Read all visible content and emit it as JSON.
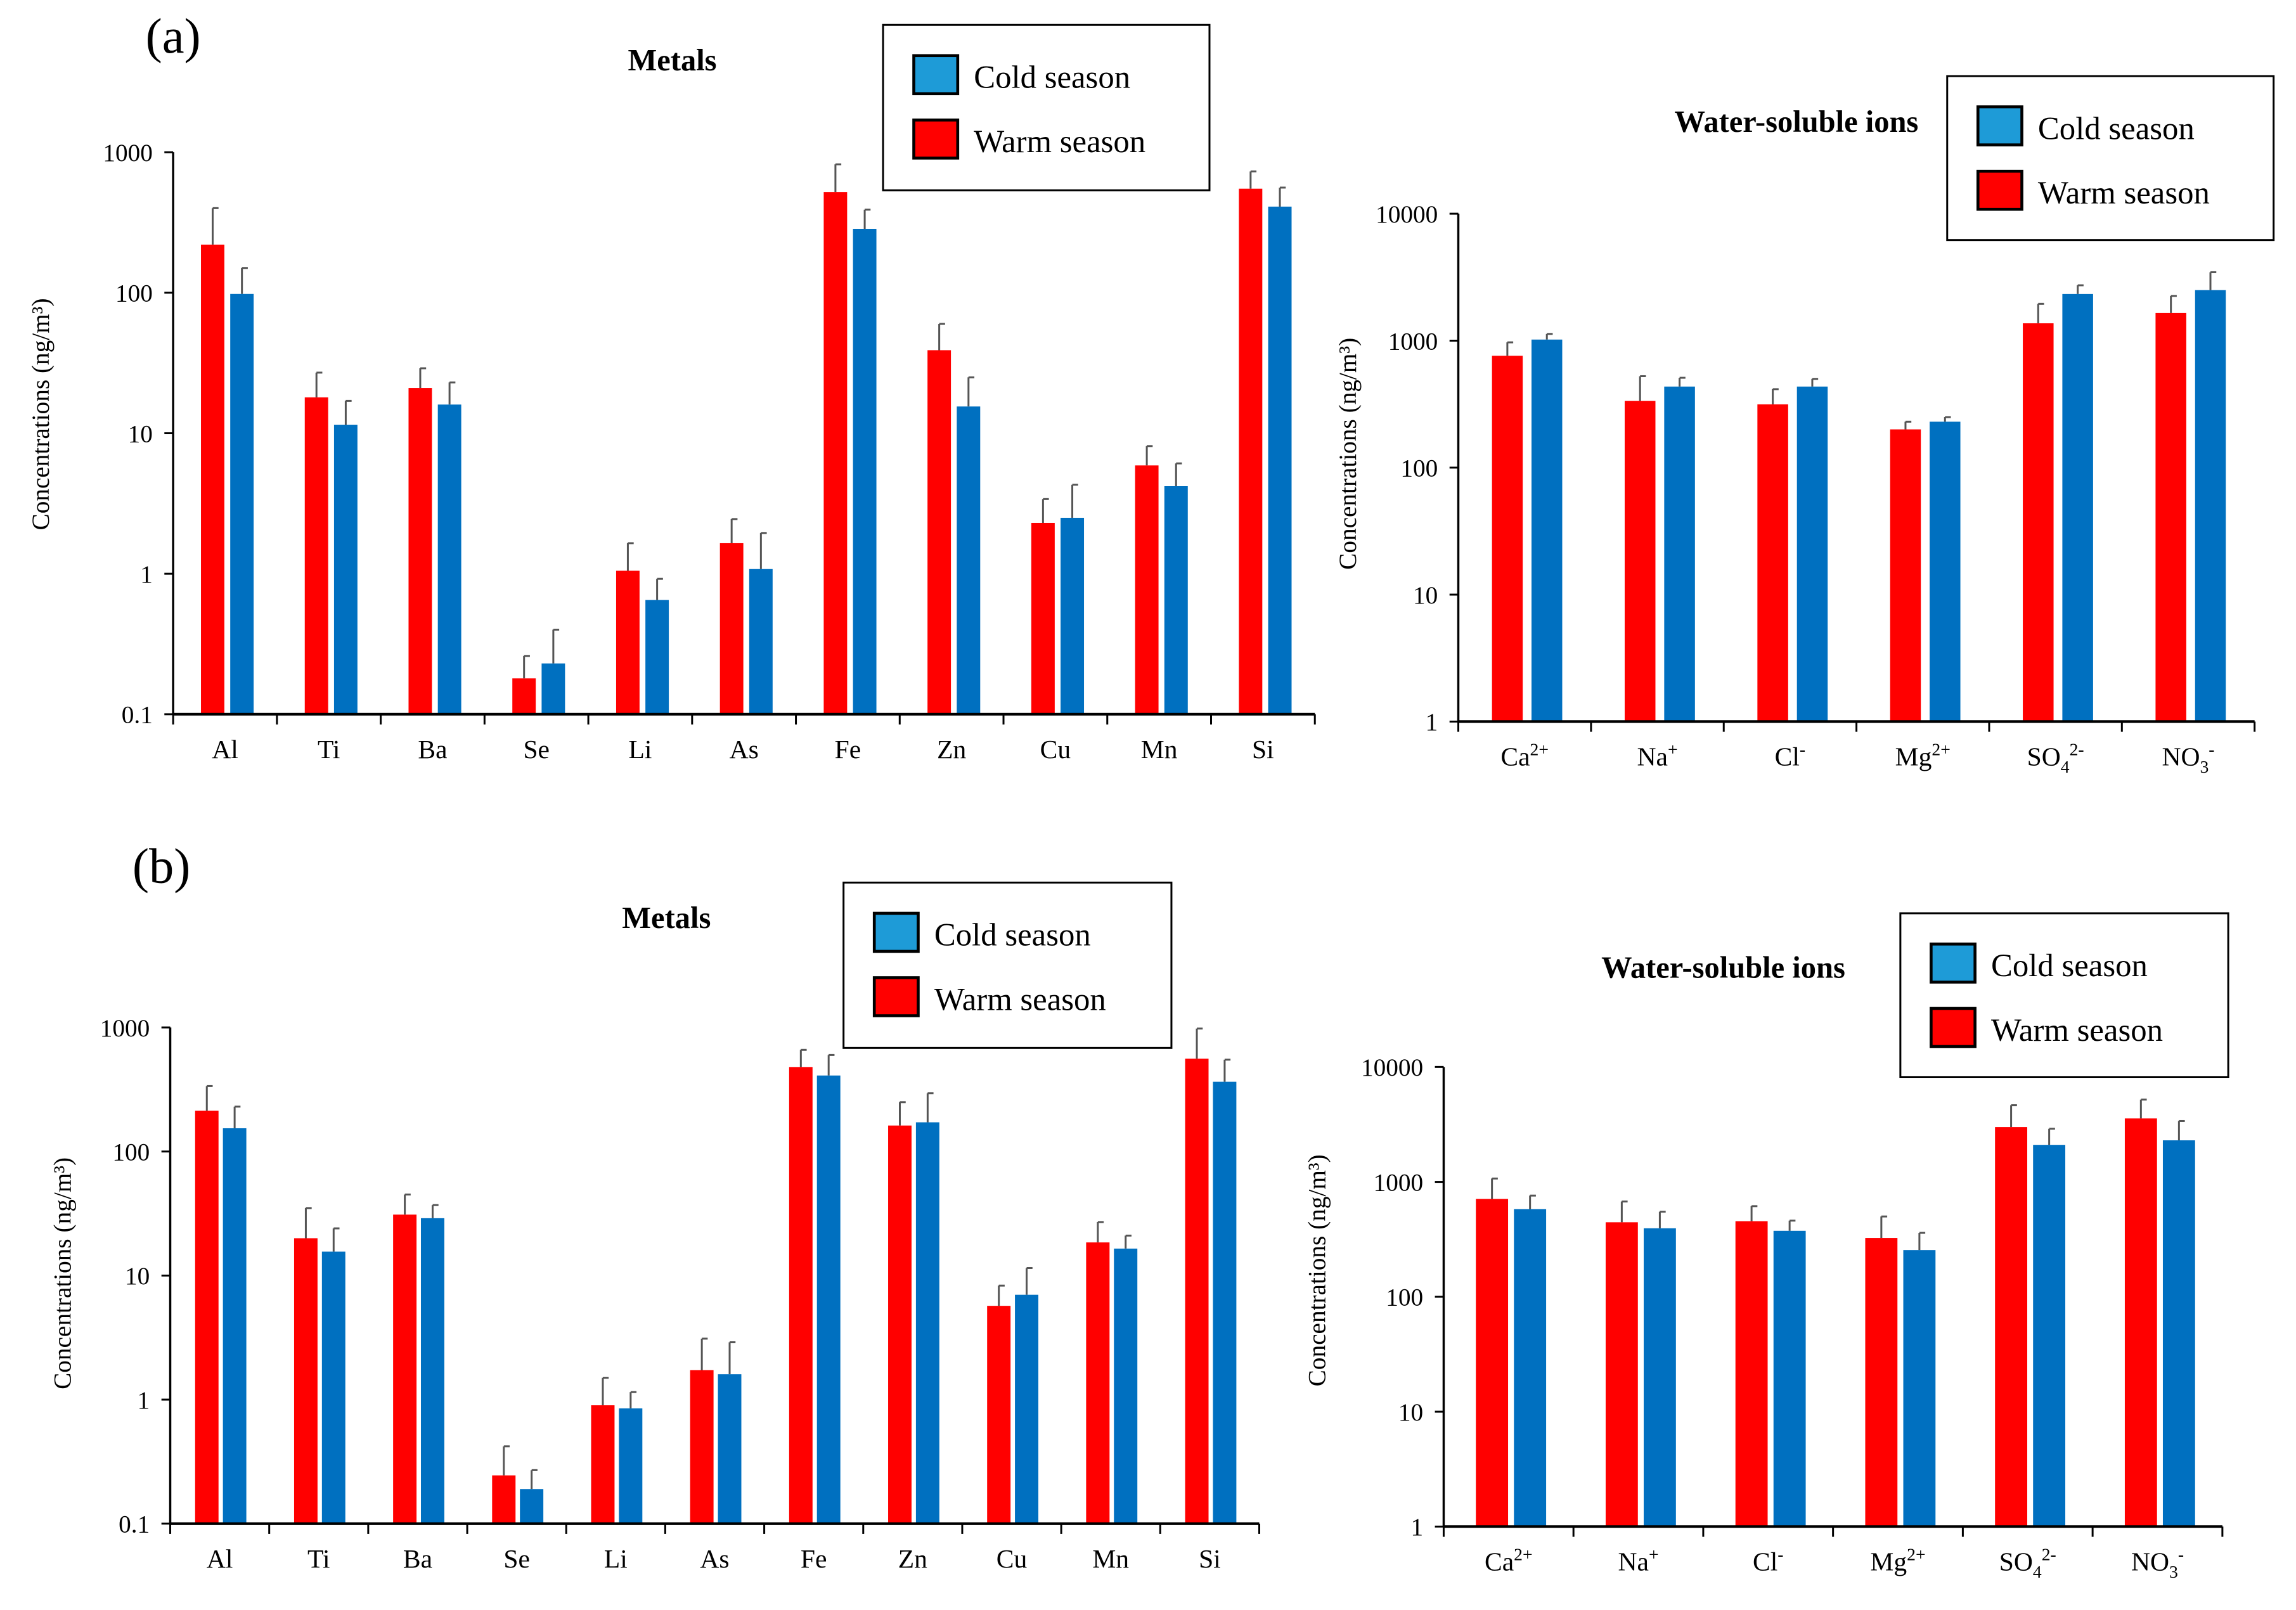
{
  "colors": {
    "warm": "#FF0000",
    "cold": "#0070C0",
    "cold_legend": "#1E9BD7",
    "error_bar": "#555555"
  },
  "chart_data": [
    {
      "id": "a-metals",
      "panel_label": "(a)",
      "type": "bar",
      "title": "Metals",
      "ylabel": "Concentrations (ng/m³)",
      "yscale": "log",
      "ylim": [
        0.1,
        1000
      ],
      "yticks": [
        0.1,
        1,
        10,
        100,
        1000
      ],
      "ytick_labels": [
        "0.1",
        "1",
        "10",
        "100",
        "1000"
      ],
      "legend": {
        "placement": "top-right",
        "entries": [
          "Cold season",
          "Warm season"
        ]
      },
      "categories": [
        [
          [
            "Al",
            ""
          ]
        ],
        [
          [
            "Ti",
            ""
          ]
        ],
        [
          [
            "Ba",
            ""
          ]
        ],
        [
          [
            "Se",
            ""
          ]
        ],
        [
          [
            "Li",
            ""
          ]
        ],
        [
          [
            "As",
            ""
          ]
        ],
        [
          [
            "Fe",
            ""
          ]
        ],
        [
          [
            "Zn",
            ""
          ]
        ],
        [
          [
            "Cu",
            ""
          ]
        ],
        [
          [
            "Mn",
            ""
          ]
        ],
        [
          [
            "Si",
            ""
          ]
        ]
      ],
      "series": [
        {
          "name": "Warm season",
          "values": [
            220,
            18,
            21,
            0.18,
            1.05,
            1.65,
            520,
            39,
            2.3,
            5.9,
            550
          ],
          "error_top": [
            400,
            27,
            29,
            0.26,
            1.65,
            2.45,
            820,
            60,
            3.4,
            8.1,
            730
          ]
        },
        {
          "name": "Cold season",
          "values": [
            98,
            11.5,
            16,
            0.23,
            0.65,
            1.08,
            285,
            15.5,
            2.5,
            4.2,
            410
          ],
          "error_top": [
            150,
            17,
            23,
            0.4,
            0.92,
            1.95,
            390,
            25,
            4.3,
            6.1,
            560
          ]
        }
      ]
    },
    {
      "id": "a-ions",
      "type": "bar",
      "title": "Water-soluble ions",
      "ylabel": "Concentrations (ng/m³)",
      "yscale": "log",
      "ylim": [
        1,
        10000
      ],
      "yticks": [
        1,
        10,
        100,
        1000,
        10000
      ],
      "ytick_labels": [
        "1",
        "10",
        "100",
        "1000",
        "10000"
      ],
      "legend": {
        "placement": "top-right",
        "entries": [
          "Cold season",
          "Warm season"
        ]
      },
      "categories": [
        [
          [
            "Ca",
            ""
          ],
          [
            "2+",
            "sup"
          ]
        ],
        [
          [
            "Na",
            ""
          ],
          [
            "+",
            "sup"
          ]
        ],
        [
          [
            "Cl",
            ""
          ],
          [
            "-",
            "sup"
          ]
        ],
        [
          [
            "Mg",
            ""
          ],
          [
            "2+",
            "sup"
          ]
        ],
        [
          [
            "SO",
            ""
          ],
          [
            "4",
            "sub"
          ],
          [
            "2-",
            "sup"
          ]
        ],
        [
          [
            "NO",
            ""
          ],
          [
            "3",
            "sub"
          ],
          [
            "-",
            "sup"
          ]
        ]
      ],
      "series": [
        {
          "name": "Warm season",
          "values": [
            760,
            335,
            315,
            200,
            1370,
            1650
          ],
          "error_top": [
            970,
            525,
            415,
            230,
            1950,
            2250
          ]
        },
        {
          "name": "Cold season",
          "values": [
            1020,
            435,
            435,
            230,
            2330,
            2500
          ],
          "error_top": [
            1130,
            510,
            500,
            250,
            2730,
            3460
          ]
        }
      ]
    },
    {
      "id": "b-metals",
      "panel_label": "(b)",
      "type": "bar",
      "title": "Metals",
      "ylabel": "Concentrations (ng/m³)",
      "yscale": "log",
      "ylim": [
        0.1,
        1000
      ],
      "yticks": [
        0.1,
        1,
        10,
        100,
        1000
      ],
      "ytick_labels": [
        "0.1",
        "1",
        "10",
        "100",
        "1000"
      ],
      "legend": {
        "placement": "top-right",
        "entries": [
          "Cold season",
          "Warm season"
        ]
      },
      "categories": [
        [
          [
            "Al",
            ""
          ]
        ],
        [
          [
            "Ti",
            ""
          ]
        ],
        [
          [
            "Ba",
            ""
          ]
        ],
        [
          [
            "Se",
            ""
          ]
        ],
        [
          [
            "Li",
            ""
          ]
        ],
        [
          [
            "As",
            ""
          ]
        ],
        [
          [
            "Fe",
            ""
          ]
        ],
        [
          [
            "Zn",
            ""
          ]
        ],
        [
          [
            "Cu",
            ""
          ]
        ],
        [
          [
            "Mn",
            ""
          ]
        ],
        [
          [
            "Si",
            ""
          ]
        ]
      ],
      "series": [
        {
          "name": "Warm season",
          "values": [
            213,
            20,
            31,
            0.245,
            0.9,
            1.73,
            480,
            162,
            5.7,
            18.5,
            560
          ],
          "error_top": [
            337,
            35,
            45,
            0.42,
            1.5,
            3.1,
            660,
            250,
            8.3,
            27,
            980
          ]
        },
        {
          "name": "Cold season",
          "values": [
            154,
            15.6,
            29,
            0.19,
            0.85,
            1.6,
            410,
            172,
            7.0,
            16.5,
            365
          ],
          "error_top": [
            230,
            24,
            37,
            0.27,
            1.15,
            2.9,
            600,
            295,
            11.5,
            21,
            550
          ]
        }
      ]
    },
    {
      "id": "b-ions",
      "type": "bar",
      "title": "Water-soluble ions",
      "ylabel": "Concentrations (ng/m³)",
      "yscale": "log",
      "ylim": [
        1,
        10000
      ],
      "yticks": [
        1,
        10,
        100,
        1000,
        10000
      ],
      "ytick_labels": [
        "1",
        "10",
        "100",
        "1000",
        "10000"
      ],
      "legend": {
        "placement": "top-right",
        "entries": [
          "Cold season",
          "Warm season"
        ]
      },
      "categories": [
        [
          [
            "Ca",
            ""
          ],
          [
            "2+",
            "sup"
          ]
        ],
        [
          [
            "Na",
            ""
          ],
          [
            "+",
            "sup"
          ]
        ],
        [
          [
            "Cl",
            ""
          ],
          [
            "-",
            "sup"
          ]
        ],
        [
          [
            "Mg",
            ""
          ],
          [
            "2+",
            "sup"
          ]
        ],
        [
          [
            "SO",
            ""
          ],
          [
            "4",
            "sub"
          ],
          [
            "2-",
            "sup"
          ]
        ],
        [
          [
            "NO",
            ""
          ],
          [
            "3",
            "sub"
          ],
          [
            "-",
            "sup"
          ]
        ]
      ],
      "series": [
        {
          "name": "Warm season",
          "values": [
            710,
            445,
            455,
            325,
            3000,
            3570
          ],
          "error_top": [
            1070,
            675,
            615,
            500,
            4650,
            5200
          ]
        },
        {
          "name": "Cold season",
          "values": [
            580,
            395,
            375,
            255,
            2100,
            2300
          ],
          "error_top": [
            760,
            550,
            460,
            360,
            2900,
            3390
          ]
        }
      ]
    }
  ]
}
